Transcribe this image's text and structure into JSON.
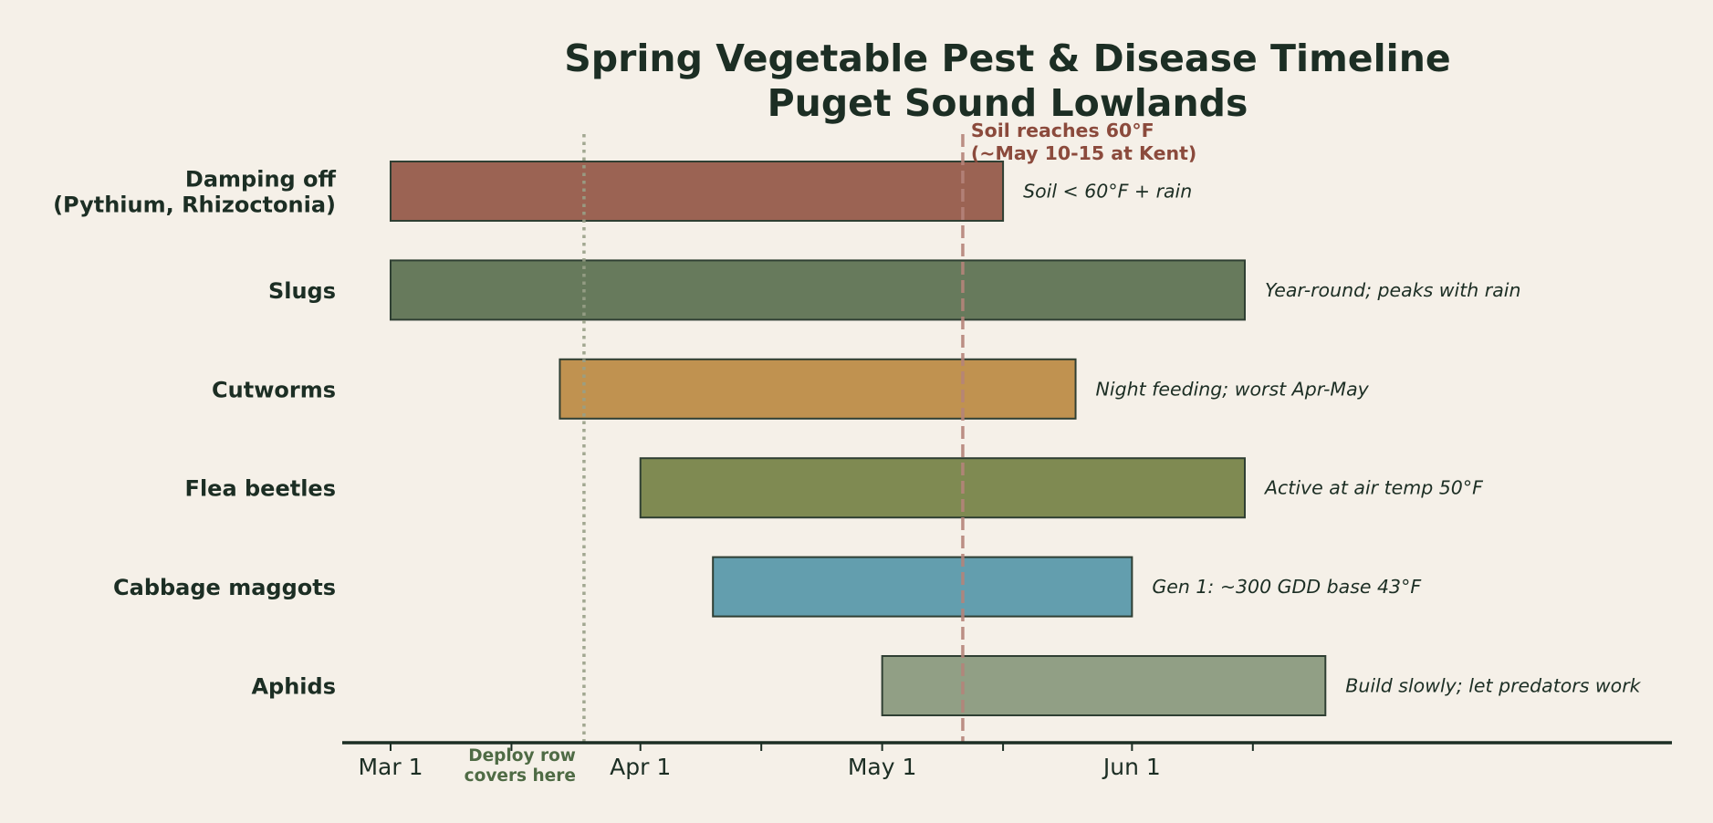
{
  "chart_data": {
    "type": "timeline",
    "title": [
      "Spring Vegetable Pest & Disease Timeline",
      "Puget Sound Lowlands"
    ],
    "year": 2025,
    "xlim": [
      "2025-02-23",
      "2025-08-07"
    ],
    "major_ticks": [
      {
        "date": "2025-03-01",
        "label": "Mar 1"
      },
      {
        "date": "2025-04-01",
        "label": "Apr 1"
      },
      {
        "date": "2025-05-01",
        "label": "May 1"
      },
      {
        "date": "2025-06-01",
        "label": "Jun 1"
      }
    ],
    "minor_ticks": [
      "2025-03-16",
      "2025-04-16",
      "2025-05-16",
      "2025-06-16"
    ],
    "grid": false,
    "rows": [
      {
        "label": [
          "Damping off",
          "(Pythium, Rhizoctonia)"
        ],
        "start": "2025-03-01",
        "end": "2025-05-16",
        "note": "Soil < 60°F + rain",
        "color": "#9b6353"
      },
      {
        "label": [
          "Slugs"
        ],
        "start": "2025-03-01",
        "end": "2025-06-15",
        "note": "Year-round; peaks with rain",
        "color": "#677a5c"
      },
      {
        "label": [
          "Cutworms"
        ],
        "start": "2025-03-22",
        "end": "2025-05-25",
        "note": "Night feeding; worst Apr-May",
        "color": "#c09250"
      },
      {
        "label": [
          "Flea beetles"
        ],
        "start": "2025-04-01",
        "end": "2025-06-15",
        "note": "Active at air temp 50°F",
        "color": "#7f8a52"
      },
      {
        "label": [
          "Cabbage maggots"
        ],
        "start": "2025-04-10",
        "end": "2025-06-01",
        "note": "Gen 1: ~300 GDD base 43°F",
        "color": "#639eae"
      },
      {
        "label": [
          "Aphids"
        ],
        "start": "2025-05-01",
        "end": "2025-06-25",
        "note": "Build slowly; let predators work",
        "color": "#919f85"
      }
    ],
    "reference_lines": [
      {
        "date": "2025-03-25",
        "style": "dotted",
        "color": "#98a088",
        "label": [
          "Deploy row",
          "covers here"
        ],
        "label_color": "#4f6b45"
      },
      {
        "date": "2025-05-11",
        "style": "dashed",
        "color": "#b5847a",
        "label": [
          "Soil reaches 60°F",
          "(~May 10-15 at Kent)"
        ],
        "label_color": "#8b4a3c"
      }
    ],
    "colors": {
      "background": "#f5f0e8",
      "text": "#1c2e24",
      "bar_edge": "#2f3f33"
    }
  }
}
